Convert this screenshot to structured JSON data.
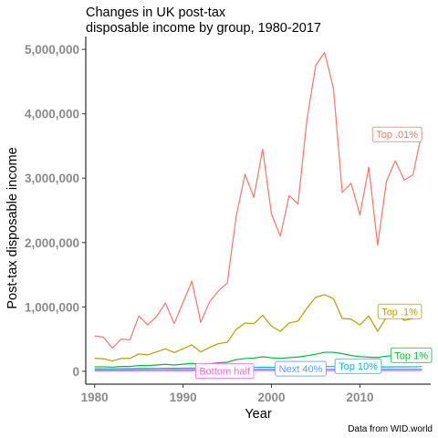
{
  "chart_data": {
    "type": "line",
    "title_lines": [
      "Changes in UK post-tax",
      "disposable income by group, 1980-2017"
    ],
    "xlabel": "Year",
    "ylabel": "Post-tax disposable income",
    "caption": "Data from WID.world",
    "xlim": [
      1979,
      2018
    ],
    "ylim": [
      -200000,
      5200000
    ],
    "x_ticks": [
      1980,
      1990,
      2000,
      2010
    ],
    "x_tick_labels": [
      "1980",
      "1990",
      "2000",
      "2010"
    ],
    "y_ticks": [
      0,
      1000000,
      2000000,
      3000000,
      4000000,
      5000000
    ],
    "y_tick_labels": [
      "0",
      "1,000,000",
      "2,000,000",
      "3,000,000",
      "4,000,000",
      "5,000,000"
    ],
    "grid": false,
    "x": [
      1980,
      1981,
      1982,
      1983,
      1984,
      1985,
      1986,
      1987,
      1988,
      1989,
      1990,
      1991,
      1992,
      1993,
      1994,
      1995,
      1996,
      1997,
      1998,
      1999,
      2000,
      2001,
      2002,
      2003,
      2004,
      2005,
      2006,
      2007,
      2008,
      2009,
      2010,
      2011,
      2012,
      2013,
      2014,
      2015,
      2016,
      2017
    ],
    "series": [
      {
        "name": "Top .01%",
        "color": "#F8766D",
        "label_x": 2014.2,
        "label_y": 3680000,
        "values": [
          550000,
          530000,
          360000,
          500000,
          490000,
          860000,
          720000,
          850000,
          1060000,
          740000,
          1070000,
          1400000,
          760000,
          1080000,
          1250000,
          1370000,
          2400000,
          3060000,
          2700000,
          3450000,
          2440000,
          2100000,
          2730000,
          2600000,
          3900000,
          4750000,
          4950000,
          4400000,
          2780000,
          2920000,
          2430000,
          3170000,
          1960000,
          2950000,
          3270000,
          2970000,
          3050000,
          3710000
        ]
      },
      {
        "name": "Top .1%",
        "color": "#B79F00",
        "label_x": 2014.5,
        "label_y": 930000,
        "values": [
          200000,
          195000,
          160000,
          200000,
          200000,
          270000,
          255000,
          300000,
          350000,
          290000,
          350000,
          410000,
          300000,
          370000,
          430000,
          450000,
          650000,
          750000,
          740000,
          870000,
          700000,
          620000,
          750000,
          780000,
          980000,
          1150000,
          1190000,
          1130000,
          820000,
          810000,
          720000,
          860000,
          620000,
          840000,
          910000,
          790000,
          820000,
          950000
        ]
      },
      {
        "name": "Top 1%",
        "color": "#00BA38",
        "label_x": 2015.8,
        "label_y": 250000,
        "values": [
          70000,
          70000,
          65000,
          75000,
          75000,
          90000,
          88000,
          98000,
          108000,
          98000,
          110000,
          122000,
          105000,
          118000,
          132000,
          140000,
          182000,
          198000,
          205000,
          225000,
          210000,
          200000,
          212000,
          222000,
          242000,
          265000,
          295000,
          295000,
          275000,
          245000,
          228000,
          220000,
          215000,
          235000,
          245000,
          236000,
          238000,
          265000
        ]
      },
      {
        "name": "Top 10%",
        "color": "#00BFC4",
        "label_x": 2009.8,
        "label_y": 80000,
        "values": [
          40000,
          40000,
          40000,
          41000,
          42000,
          44000,
          44000,
          45000,
          47000,
          46000,
          48000,
          50000,
          48000,
          50000,
          52000,
          54000,
          57000,
          59000,
          61000,
          64000,
          63000,
          62000,
          63000,
          65000,
          67000,
          70000,
          73000,
          74000,
          72000,
          69000,
          67000,
          67000,
          66000,
          68000,
          69000,
          69000,
          70000,
          72000
        ]
      },
      {
        "name": "Next 40%",
        "color": "#619CFF",
        "label_x": 2003.3,
        "label_y": 40000,
        "values": [
          22000,
          22000,
          22000,
          22500,
          23000,
          23500,
          23500,
          24000,
          24500,
          24500,
          25000,
          25500,
          25000,
          25500,
          26000,
          26500,
          27000,
          27500,
          28000,
          28500,
          28500,
          28500,
          29000,
          29500,
          30000,
          30500,
          31000,
          31500,
          31000,
          30500,
          30000,
          30000,
          30000,
          30500,
          31000,
          31000,
          31500,
          32000
        ]
      },
      {
        "name": "Bottom half",
        "color": "#F564E3",
        "label_x": 1994.7,
        "label_y": 5000,
        "values": [
          9000,
          9000,
          9000,
          9200,
          9400,
          9600,
          9600,
          9800,
          10000,
          10000,
          10200,
          10400,
          10200,
          10400,
          10600,
          10800,
          11000,
          11200,
          11400,
          11600,
          11600,
          11600,
          11800,
          12000,
          12200,
          12400,
          12600,
          12800,
          12600,
          12400,
          12200,
          12200,
          12200,
          12400,
          12600,
          12600,
          12800,
          13000
        ]
      }
    ]
  }
}
